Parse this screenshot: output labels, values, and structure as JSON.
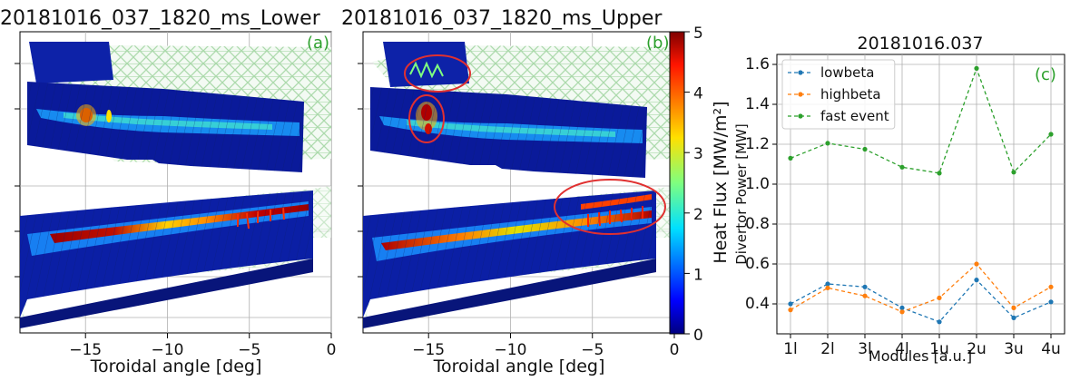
{
  "colors": {
    "panel_label": "#2ca02c",
    "grid": "#b0b0b0",
    "lowbeta": "#1f77b4",
    "highbeta": "#ff7f0e",
    "fast_event": "#2ca02c",
    "highlight_circle": "#e03030",
    "mesh": "#a8d8a8",
    "map_low": "#0a1a9a",
    "map_high": "#8b0000"
  },
  "chart_data": [
    {
      "type": "heatmap",
      "title": "20181016_037_1820_ms_Lower",
      "panel_label": "(a)",
      "xlabel": "Toroidal angle [deg]",
      "x_ticks": [
        "−15",
        "−10",
        "−5",
        "0"
      ],
      "xlim": [
        -19,
        0
      ],
      "grid": true
    },
    {
      "type": "heatmap",
      "title": "20181016_037_1820_ms_Upper",
      "panel_label": "(b)",
      "xlabel": "Toroidal angle [deg]",
      "x_ticks": [
        "−15",
        "−10",
        "−5",
        "0"
      ],
      "xlim": [
        -19,
        0
      ],
      "grid": true,
      "highlighted_regions": 3
    },
    {
      "type": "colorbar",
      "label": "Heat Flux [MW/m²]",
      "range": [
        0,
        5
      ],
      "ticks": [
        "0",
        "1",
        "2",
        "3",
        "4",
        "5"
      ],
      "colormap": "jet"
    },
    {
      "type": "line",
      "title": "20181016.037",
      "panel_label": "(c)",
      "xlabel": "Modules [a.u.]",
      "ylabel": "Divertor Power [MW]",
      "categories": [
        "1l",
        "2l",
        "3l",
        "4l",
        "1u",
        "2u",
        "3u",
        "4u"
      ],
      "ylim": [
        0.25,
        1.65
      ],
      "y_ticks": [
        0.4,
        0.6,
        0.8,
        1.0,
        1.2,
        1.4,
        1.6
      ],
      "y_tick_labels": [
        "0.4",
        "0.6",
        "0.8",
        "1.0",
        "1.2",
        "1.4",
        "1.6"
      ],
      "grid": true,
      "legend_position": "top-left",
      "line_style": "dashed",
      "series": [
        {
          "name": "lowbeta",
          "color": "#1f77b4",
          "values": [
            0.4,
            0.5,
            0.485,
            0.38,
            0.31,
            0.52,
            0.33,
            0.41
          ]
        },
        {
          "name": "highbeta",
          "color": "#ff7f0e",
          "values": [
            0.37,
            0.48,
            0.44,
            0.36,
            0.43,
            0.6,
            0.38,
            0.485
          ]
        },
        {
          "name": "fast event",
          "color": "#2ca02c",
          "values": [
            1.13,
            1.205,
            1.175,
            1.085,
            1.055,
            1.58,
            1.06,
            1.25
          ]
        }
      ]
    }
  ]
}
